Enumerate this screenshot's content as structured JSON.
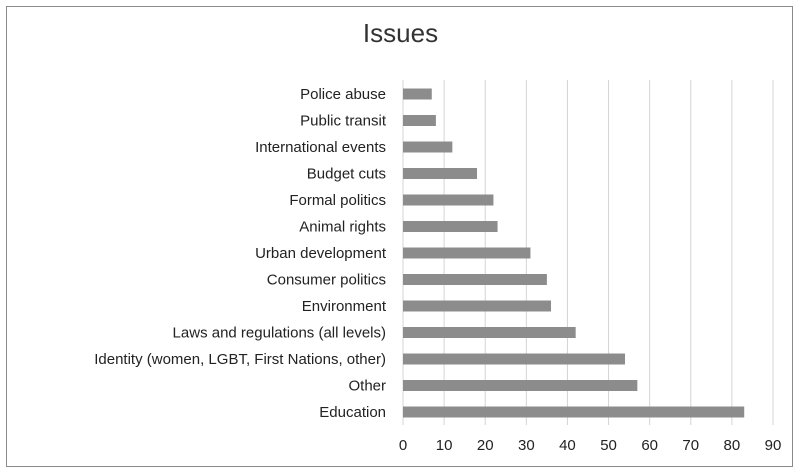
{
  "chart_data": {
    "type": "bar",
    "orientation": "horizontal",
    "title": "Issues",
    "xlabel": "",
    "ylabel": "",
    "categories": [
      "Police abuse",
      "Public transit",
      "International events",
      "Budget cuts",
      "Formal politics",
      "Animal rights",
      "Urban development",
      "Consumer politics",
      "Environment",
      "Laws and regulations (all levels)",
      "Identity (women, LGBT, First Nations, other)",
      "Other",
      "Education"
    ],
    "values": [
      7,
      8,
      12,
      18,
      22,
      23,
      31,
      35,
      36,
      42,
      54,
      57,
      83
    ],
    "xlim": [
      0,
      90
    ],
    "xticks": [
      0,
      10,
      20,
      30,
      40,
      50,
      60,
      70,
      80,
      90
    ],
    "grid": "vertical",
    "legend": "none",
    "bar_color": "#8c8c8c",
    "grid_color": "#d4d4d4"
  }
}
